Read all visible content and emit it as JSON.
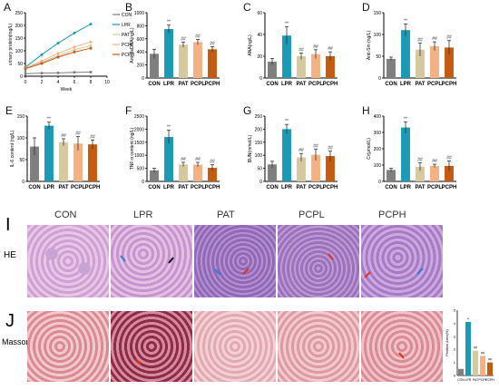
{
  "colors": {
    "CON": "#7f7f7f",
    "LPR": "#1a9ab4",
    "PAT": "#d6c9a0",
    "PCPL": "#f4b183",
    "PCPH": "#c55a11"
  },
  "groups": [
    "CON",
    "LPR",
    "PAT",
    "PCPL",
    "PCPH"
  ],
  "panels": [
    {
      "letter": "A",
      "type": "line",
      "ylabel": "urinary protein(mg/L)",
      "xlabel": "Week",
      "xticks": [
        0,
        2,
        4,
        6,
        8,
        10
      ],
      "yticks": [
        0,
        50,
        100,
        150,
        200,
        250
      ],
      "ylim": [
        0,
        250
      ],
      "xlim": [
        0,
        10
      ],
      "x": [
        0,
        2,
        4,
        6,
        8
      ],
      "series": [
        {
          "name": "CON",
          "values": [
            10,
            12,
            13,
            15,
            16
          ]
        },
        {
          "name": "LPR",
          "values": [
            35,
            85,
            130,
            170,
            205
          ]
        },
        {
          "name": "PAT",
          "values": [
            30,
            55,
            80,
            105,
            120
          ]
        },
        {
          "name": "PCPL",
          "values": [
            32,
            60,
            90,
            115,
            135
          ]
        },
        {
          "name": "PCPH",
          "values": [
            30,
            50,
            75,
            95,
            110
          ]
        }
      ]
    },
    {
      "letter": "B",
      "type": "bar",
      "ylabel": "Anti-dsDNA(ng/L)",
      "ylim": [
        0,
        1000
      ],
      "yticks": [
        0,
        200,
        400,
        600,
        800,
        1000
      ],
      "values": [
        370,
        750,
        510,
        550,
        440
      ],
      "errors": [
        70,
        60,
        40,
        40,
        40
      ],
      "marks": [
        "",
        "**",
        "##",
        "##",
        "##"
      ]
    },
    {
      "letter": "C",
      "type": "bar",
      "ylabel": "ANA(ng/L)",
      "ylim": [
        0,
        60
      ],
      "yticks": [
        0,
        20,
        40,
        60
      ],
      "values": [
        15,
        39,
        20,
        22,
        20
      ],
      "errors": [
        3,
        8,
        3,
        4,
        4
      ],
      "marks": [
        "",
        "**",
        "##",
        "##",
        "##"
      ]
    },
    {
      "letter": "D",
      "type": "bar",
      "ylabel": "Anti-Sm (ng/L)",
      "ylim": [
        0,
        150
      ],
      "yticks": [
        0,
        50,
        100,
        150
      ],
      "values": [
        44,
        110,
        65,
        73,
        70
      ],
      "errors": [
        4,
        14,
        15,
        10,
        16
      ],
      "marks": [
        "",
        "**",
        "##",
        "##",
        "##"
      ]
    },
    {
      "letter": "E",
      "type": "bar",
      "ylabel": "IL-6 content (ng/L)",
      "ylim": [
        0,
        150
      ],
      "yticks": [
        0,
        50,
        100,
        150
      ],
      "values": [
        80,
        128,
        90,
        87,
        85
      ],
      "errors": [
        20,
        8,
        8,
        16,
        10
      ],
      "marks": [
        "",
        "**",
        "##",
        "##",
        "##"
      ]
    },
    {
      "letter": "F",
      "type": "bar",
      "ylabel": "TNF-α content (ng/L)",
      "ylim": [
        0,
        2500
      ],
      "yticks": [
        0,
        500,
        1000,
        1500,
        2000,
        2500
      ],
      "values": [
        420,
        1700,
        650,
        640,
        520
      ],
      "errors": [
        80,
        260,
        80,
        90,
        120
      ],
      "marks": [
        "",
        "**",
        "##",
        "##",
        "##"
      ]
    },
    {
      "letter": "G",
      "type": "bar",
      "ylabel": "BUN(mmol/L)",
      "ylim": [
        0,
        250
      ],
      "yticks": [
        0,
        50,
        100,
        150,
        200,
        250
      ],
      "values": [
        65,
        200,
        92,
        102,
        97
      ],
      "errors": [
        12,
        18,
        15,
        22,
        20
      ],
      "marks": [
        "",
        "**",
        "##",
        "##",
        "##"
      ]
    },
    {
      "letter": "H",
      "type": "bar",
      "ylabel": "Cr(μmol/L)",
      "ylim": [
        0,
        400
      ],
      "yticks": [
        0,
        100,
        200,
        300,
        400
      ],
      "values": [
        70,
        330,
        90,
        95,
        95
      ],
      "errors": [
        10,
        35,
        25,
        10,
        30
      ],
      "marks": [
        "",
        "**",
        "##",
        "##",
        "##"
      ]
    }
  ],
  "chart_data": [
    {
      "type": "line",
      "title": "A",
      "xlabel": "Week",
      "ylabel": "urinary protein(mg/L)",
      "xlim": [
        0,
        10
      ],
      "ylim": [
        0,
        250
      ],
      "x": [
        0,
        2,
        4,
        6,
        8
      ],
      "series": [
        {
          "name": "CON",
          "values": [
            10,
            12,
            13,
            15,
            16
          ]
        },
        {
          "name": "LPR",
          "values": [
            35,
            85,
            130,
            170,
            205
          ]
        },
        {
          "name": "PAT",
          "values": [
            30,
            55,
            80,
            105,
            120
          ]
        },
        {
          "name": "PCPL",
          "values": [
            32,
            60,
            90,
            115,
            135
          ]
        },
        {
          "name": "PCPH",
          "values": [
            30,
            50,
            75,
            95,
            110
          ]
        }
      ],
      "legend": "top-right"
    },
    {
      "type": "bar",
      "title": "B",
      "ylabel": "Anti-dsDNA(ng/L)",
      "categories": [
        "CON",
        "LPR",
        "PAT",
        "PCPL",
        "PCPH"
      ],
      "values": [
        370,
        750,
        510,
        550,
        440
      ],
      "ylim": [
        0,
        1000
      ]
    },
    {
      "type": "bar",
      "title": "C",
      "ylabel": "ANA(ng/L)",
      "categories": [
        "CON",
        "LPR",
        "PAT",
        "PCPL",
        "PCPH"
      ],
      "values": [
        15,
        39,
        20,
        22,
        20
      ],
      "ylim": [
        0,
        60
      ]
    },
    {
      "type": "bar",
      "title": "D",
      "ylabel": "Anti-Sm (ng/L)",
      "categories": [
        "CON",
        "LPR",
        "PAT",
        "PCPL",
        "PCPH"
      ],
      "values": [
        44,
        110,
        65,
        73,
        70
      ],
      "ylim": [
        0,
        150
      ]
    },
    {
      "type": "bar",
      "title": "E",
      "ylabel": "IL-6 content (ng/L)",
      "categories": [
        "CON",
        "LPR",
        "PAT",
        "PCPL",
        "PCPH"
      ],
      "values": [
        80,
        128,
        90,
        87,
        85
      ],
      "ylim": [
        0,
        150
      ]
    },
    {
      "type": "bar",
      "title": "F",
      "ylabel": "TNF-α content (ng/L)",
      "categories": [
        "CON",
        "LPR",
        "PAT",
        "PCPL",
        "PCPH"
      ],
      "values": [
        420,
        1700,
        650,
        640,
        520
      ],
      "ylim": [
        0,
        2500
      ]
    },
    {
      "type": "bar",
      "title": "G",
      "ylabel": "BUN(mmol/L)",
      "categories": [
        "CON",
        "LPR",
        "PAT",
        "PCPL",
        "PCPH"
      ],
      "values": [
        65,
        200,
        92,
        102,
        97
      ],
      "ylim": [
        0,
        250
      ]
    },
    {
      "type": "bar",
      "title": "H",
      "ylabel": "Cr(μmol/L)",
      "categories": [
        "CON",
        "LPR",
        "PAT",
        "PCPL",
        "PCPH"
      ],
      "values": [
        70,
        330,
        90,
        95,
        95
      ],
      "ylim": [
        0,
        400
      ]
    },
    {
      "type": "bar",
      "title": "J inset",
      "ylabel": "Positive Area(%)",
      "categories": [
        "CON",
        "LPR",
        "PAT",
        "PCPL",
        "PCPH"
      ],
      "values": [
        0.5,
        4.1,
        1.9,
        1.5,
        1.0
      ],
      "ylim": [
        0,
        5
      ]
    }
  ],
  "histology": {
    "columns": [
      "CON",
      "LPR",
      "PAT",
      "PCPL",
      "PCPH"
    ],
    "row_I": {
      "letter": "I",
      "stain": "HE"
    },
    "row_J": {
      "letter": "J",
      "stain": "Masson"
    }
  },
  "inset": {
    "ylabel": "Positive Area(%)",
    "yticks": [
      0,
      1,
      2,
      3,
      4,
      5
    ],
    "values": [
      0.5,
      4.1,
      1.9,
      1.5,
      1.0
    ],
    "marks": [
      "",
      "**",
      "##",
      "##",
      "##"
    ]
  }
}
